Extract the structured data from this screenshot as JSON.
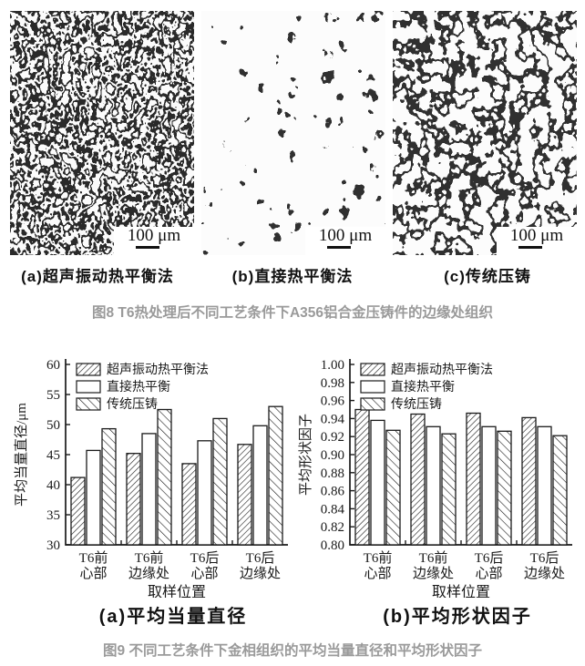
{
  "figure8": {
    "panels": [
      {
        "label": "(a)超声振动热平衡法",
        "scale_bar": "100 μm"
      },
      {
        "label": "(b)直接热平衡法",
        "scale_bar": "100 μm"
      },
      {
        "label": "(c)传统压铸",
        "scale_bar": "100 μm"
      }
    ],
    "caption": "图8 T6热处理后不同工艺条件下A356铝合金压铸件的边缘处组织"
  },
  "figure9": {
    "caption": "图9 不同工艺条件下金相组织的平均当量直径和平均形状因子"
  },
  "chart_data": [
    {
      "type": "bar",
      "subcaption": "(a)平均当量直径",
      "ylabel": "平均当量直径/μm",
      "xlabel": "取样位置",
      "ylim": [
        30,
        60
      ],
      "ytick_step": 5,
      "ytick_decimals": 0,
      "grid": false,
      "legend_position": "top-left",
      "categories": [
        [
          "T6前",
          "心部"
        ],
        [
          "T6前",
          "边缘处"
        ],
        [
          "T6后",
          "心部"
        ],
        [
          "T6后",
          "边缘处"
        ]
      ],
      "series": [
        {
          "name": "超声振动热平衡法",
          "hatch": "forward",
          "values": [
            41.2,
            45.2,
            43.5,
            46.7
          ]
        },
        {
          "name": "直接热平衡",
          "hatch": "none",
          "values": [
            45.7,
            48.5,
            47.3,
            49.8
          ]
        },
        {
          "name": "传统压铸",
          "hatch": "backward",
          "values": [
            49.3,
            52.5,
            51.0,
            53.0
          ]
        }
      ]
    },
    {
      "type": "bar",
      "subcaption": "(b)平均形状因子",
      "ylabel": "平均形状因子",
      "xlabel": "取样位置",
      "ylim": [
        0.8,
        1.0
      ],
      "ytick_step": 0.02,
      "ytick_decimals": 2,
      "grid": false,
      "legend_position": "top-left",
      "categories": [
        [
          "T6前",
          "心部"
        ],
        [
          "T6前",
          "边缘处"
        ],
        [
          "T6后",
          "心部"
        ],
        [
          "T6后",
          "边缘处"
        ]
      ],
      "series": [
        {
          "name": "超声振动热平衡法",
          "hatch": "forward",
          "values": [
            0.95,
            0.945,
            0.946,
            0.941
          ]
        },
        {
          "name": "直接热平衡",
          "hatch": "none",
          "values": [
            0.938,
            0.931,
            0.931,
            0.931
          ]
        },
        {
          "name": "传统压铸",
          "hatch": "backward",
          "values": [
            0.927,
            0.923,
            0.926,
            0.921
          ]
        }
      ]
    }
  ],
  "colors": {
    "ink": "#1a1a1a",
    "caption_grey": "#9a9a9a",
    "background": "#ffffff"
  }
}
